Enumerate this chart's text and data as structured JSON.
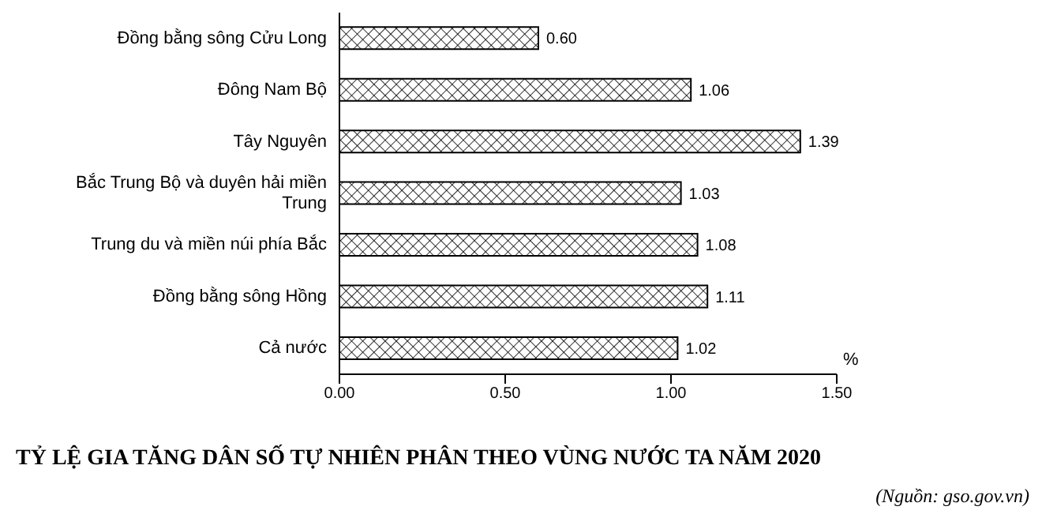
{
  "chart_data": {
    "type": "bar",
    "orientation": "horizontal",
    "title": "TỶ LỆ GIA TĂNG DÂN SỐ TỰ NHIÊN PHÂN THEO VÙNG NƯỚC TA NĂM 2020",
    "xlabel": "%",
    "annotations": [
      "(Nguồn: gso.gov.vn)"
    ],
    "categories": [
      "Đồng bằng sông Cửu Long",
      "Đông Nam Bộ",
      "Tây Nguyên",
      "Bắc Trung Bộ và duyên hải miền Trung",
      "Trung du và miền núi phía Bắc",
      "Đồng bằng sông Hồng",
      "Cả nước"
    ],
    "values": [
      0.6,
      1.06,
      1.39,
      1.03,
      1.08,
      1.11,
      1.02
    ],
    "value_labels": [
      "0.60",
      "1.06",
      "1.39",
      "1.03",
      "1.08",
      "1.11",
      "1.02"
    ],
    "color": "#000000",
    "xlim": [
      0,
      1.5
    ],
    "xticks": [
      {
        "value": 0,
        "label": "0.00"
      },
      {
        "value": 0.5,
        "label": "0.50"
      },
      {
        "value": 1,
        "label": "1.00"
      },
      {
        "value": 1.5,
        "label": "1.50"
      }
    ],
    "grid": false,
    "legend": false
  }
}
